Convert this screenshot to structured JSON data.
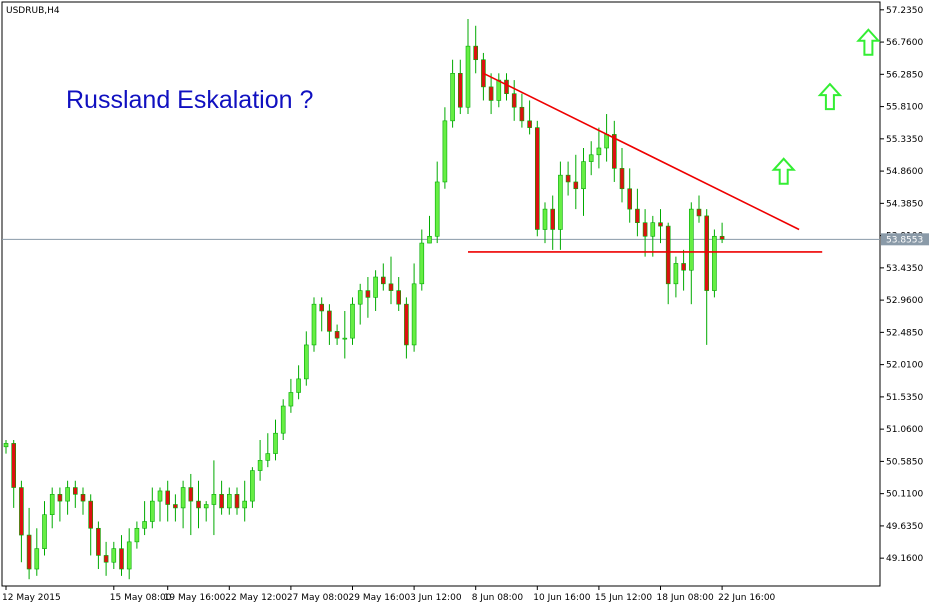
{
  "chart_data": {
    "type": "candlestick",
    "symbol_label": "USDRUB,H4",
    "annotation": "Russland Eskalation ?",
    "current_price_label": "53.8553",
    "current_price": 53.8553,
    "ylim": [
      48.75,
      57.35
    ],
    "y_ticks": [
      "57.2350",
      "56.7600",
      "56.2850",
      "55.8100",
      "55.3350",
      "54.8600",
      "54.3850",
      "53.9100",
      "53.4350",
      "52.9600",
      "52.4850",
      "52.0100",
      "51.5350",
      "51.0600",
      "50.5850",
      "50.1100",
      "49.6350",
      "49.1600"
    ],
    "x_labels": [
      {
        "label": "12 May 2015",
        "index": 0
      },
      {
        "label": "15 May 08:00",
        "index": 14
      },
      {
        "label": "19 May 16:00",
        "index": 21
      },
      {
        "label": "22 May 12:00",
        "index": 29
      },
      {
        "label": "27 May 08:00",
        "index": 37
      },
      {
        "label": "29 May 16:00",
        "index": 45
      },
      {
        "label": "3 Jun 12:00",
        "index": 53
      },
      {
        "label": "8 Jun 08:00",
        "index": 61
      },
      {
        "label": "10 Jun 16:00",
        "index": 69
      },
      {
        "label": "15 Jun 12:00",
        "index": 77
      },
      {
        "label": "18 Jun 08:00",
        "index": 85
      },
      {
        "label": "22 Jun 16:00",
        "index": 93
      }
    ],
    "colors": {
      "bull": "#66ee44",
      "bear": "#dd1111",
      "wick": "#00aa00",
      "trend": "#ee0000",
      "arrow": "#33ee33",
      "price_line": "#8a9aa8",
      "tag": "#8a9aa8",
      "annotation": "#1010c0"
    },
    "candles": [
      [
        50.8,
        50.9,
        50.7,
        50.85
      ],
      [
        50.85,
        50.9,
        49.9,
        50.2
      ],
      [
        50.2,
        50.3,
        49.1,
        49.5
      ],
      [
        49.5,
        49.9,
        48.85,
        49.0
      ],
      [
        49.0,
        49.6,
        48.9,
        49.3
      ],
      [
        49.3,
        50.0,
        49.2,
        49.8
      ],
      [
        49.8,
        50.2,
        49.6,
        50.1
      ],
      [
        50.1,
        50.2,
        49.7,
        50.0
      ],
      [
        50.0,
        50.3,
        49.8,
        50.2
      ],
      [
        50.2,
        50.3,
        49.9,
        50.1
      ],
      [
        50.1,
        50.2,
        49.8,
        50.0
      ],
      [
        50.0,
        50.1,
        49.2,
        49.6
      ],
      [
        49.6,
        49.7,
        49.0,
        49.2
      ],
      [
        49.2,
        49.4,
        48.9,
        49.1
      ],
      [
        49.1,
        49.4,
        49.0,
        49.3
      ],
      [
        49.3,
        49.5,
        48.9,
        49.0
      ],
      [
        49.0,
        49.6,
        48.85,
        49.4
      ],
      [
        49.4,
        49.7,
        49.3,
        49.6
      ],
      [
        49.6,
        50.0,
        49.5,
        49.7
      ],
      [
        49.7,
        50.2,
        49.6,
        50.0
      ],
      [
        50.0,
        50.2,
        49.7,
        50.15
      ],
      [
        50.15,
        50.3,
        49.7,
        49.95
      ],
      [
        49.95,
        50.1,
        49.7,
        49.9
      ],
      [
        49.9,
        50.3,
        49.6,
        50.2
      ],
      [
        50.2,
        50.4,
        49.5,
        50.0
      ],
      [
        50.0,
        50.3,
        49.6,
        49.9
      ],
      [
        49.9,
        50.0,
        49.7,
        49.95
      ],
      [
        49.95,
        50.6,
        49.5,
        50.1
      ],
      [
        50.1,
        50.3,
        49.8,
        49.9
      ],
      [
        49.9,
        50.2,
        49.8,
        50.1
      ],
      [
        50.1,
        50.2,
        49.8,
        49.9
      ],
      [
        49.9,
        50.3,
        49.7,
        50.0
      ],
      [
        50.0,
        50.5,
        49.9,
        50.45
      ],
      [
        50.45,
        50.9,
        50.3,
        50.6
      ],
      [
        50.6,
        51.0,
        50.5,
        50.7
      ],
      [
        50.7,
        51.2,
        50.6,
        51.0
      ],
      [
        51.0,
        51.5,
        50.9,
        51.4
      ],
      [
        51.4,
        51.8,
        51.3,
        51.6
      ],
      [
        51.6,
        52.0,
        51.5,
        51.8
      ],
      [
        51.8,
        52.5,
        51.7,
        52.3
      ],
      [
        52.3,
        53.0,
        52.2,
        52.9
      ],
      [
        52.9,
        53.0,
        52.5,
        52.8
      ],
      [
        52.8,
        52.9,
        52.3,
        52.5
      ],
      [
        52.5,
        52.6,
        52.3,
        52.4
      ],
      [
        52.4,
        52.8,
        52.1,
        52.4
      ],
      [
        52.4,
        53.0,
        52.3,
        52.9
      ],
      [
        52.9,
        53.2,
        52.6,
        53.1
      ],
      [
        53.1,
        53.3,
        52.7,
        53.0
      ],
      [
        53.0,
        53.4,
        52.8,
        53.3
      ],
      [
        53.3,
        53.5,
        53.1,
        53.2
      ],
      [
        53.2,
        53.6,
        52.9,
        53.1
      ],
      [
        53.1,
        53.3,
        52.8,
        52.9
      ],
      [
        52.9,
        53.0,
        52.1,
        52.3
      ],
      [
        52.3,
        53.5,
        52.2,
        53.2
      ],
      [
        53.2,
        54.0,
        53.1,
        53.8
      ],
      [
        53.8,
        54.2,
        53.8,
        53.9
      ],
      [
        53.9,
        55.0,
        53.8,
        54.7
      ],
      [
        54.7,
        55.8,
        54.6,
        55.6
      ],
      [
        55.6,
        56.5,
        55.5,
        56.3
      ],
      [
        56.3,
        56.5,
        55.7,
        55.8
      ],
      [
        55.8,
        57.1,
        55.7,
        56.7
      ],
      [
        56.7,
        57.0,
        56.3,
        56.5
      ],
      [
        56.5,
        56.6,
        55.9,
        56.1
      ],
      [
        56.1,
        56.3,
        55.7,
        55.9
      ],
      [
        55.9,
        56.3,
        55.8,
        56.2
      ],
      [
        56.2,
        56.3,
        55.9,
        56.0
      ],
      [
        56.0,
        56.2,
        55.6,
        55.8
      ],
      [
        55.8,
        56.0,
        55.5,
        55.6
      ],
      [
        55.6,
        55.9,
        55.4,
        55.5
      ],
      [
        55.5,
        55.6,
        53.9,
        54.0
      ],
      [
        54.0,
        54.4,
        53.8,
        54.3
      ],
      [
        54.3,
        54.5,
        53.7,
        54.0
      ],
      [
        54.0,
        55.0,
        53.7,
        54.8
      ],
      [
        54.8,
        55.0,
        54.5,
        54.7
      ],
      [
        54.7,
        55.1,
        54.3,
        54.6
      ],
      [
        54.6,
        55.2,
        54.2,
        55.0
      ],
      [
        55.0,
        55.3,
        54.8,
        55.1
      ],
      [
        55.1,
        55.5,
        54.9,
        55.2
      ],
      [
        55.2,
        55.7,
        55.0,
        55.4
      ],
      [
        55.4,
        55.6,
        54.7,
        54.9
      ],
      [
        54.9,
        55.2,
        54.4,
        54.6
      ],
      [
        54.6,
        54.9,
        54.1,
        54.3
      ],
      [
        54.3,
        54.6,
        53.9,
        54.1
      ],
      [
        54.1,
        54.3,
        53.6,
        53.9
      ],
      [
        53.9,
        54.2,
        53.6,
        54.1
      ],
      [
        54.1,
        54.3,
        53.8,
        54.05
      ],
      [
        54.05,
        54.1,
        52.9,
        53.2
      ],
      [
        53.2,
        53.6,
        53.0,
        53.5
      ],
      [
        53.5,
        53.7,
        53.1,
        53.4
      ],
      [
        53.4,
        54.4,
        52.9,
        54.3
      ],
      [
        54.3,
        54.5,
        54.1,
        54.2
      ],
      [
        54.2,
        54.3,
        52.3,
        53.1
      ],
      [
        53.1,
        54.0,
        53.0,
        53.9
      ],
      [
        53.9,
        54.1,
        53.8,
        53.8553
      ]
    ],
    "resistance_trend": {
      "from": {
        "index": 62,
        "price": 56.3
      },
      "to": {
        "index": 103,
        "price": 54.0
      }
    },
    "support_line": {
      "from": {
        "index": 60,
        "price": 53.67
      },
      "to": {
        "index": 106,
        "price": 53.67
      }
    },
    "arrows": [
      {
        "index": 101,
        "price": 54.85
      },
      {
        "index": 107,
        "price": 55.95
      },
      {
        "index": 112,
        "price": 56.75
      }
    ]
  }
}
